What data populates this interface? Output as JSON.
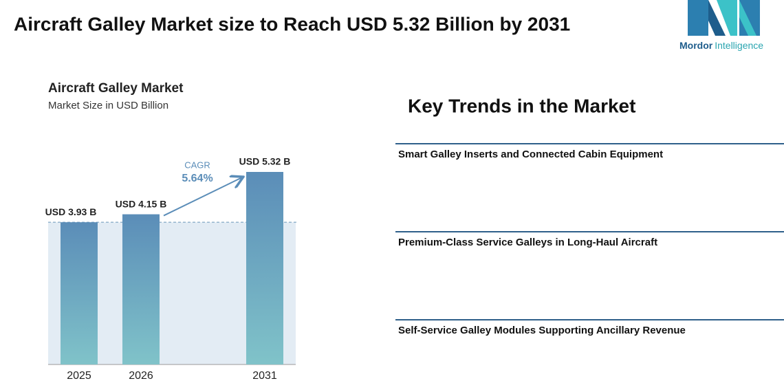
{
  "header": {
    "title": "Aircraft Galley Market size to Reach USD 5.32 Billion by 2031",
    "logo_brand": "Mordor",
    "logo_suffix": "Intelligence"
  },
  "chart_data": {
    "type": "bar",
    "title": "Aircraft Galley Market",
    "subtitle": "Market Size in USD Billion",
    "categories": [
      "2025",
      "2026",
      "2031"
    ],
    "values": [
      3.93,
      4.15,
      5.32
    ],
    "value_labels": [
      "USD 3.93 B",
      "USD 4.15 B",
      "USD 5.32 B"
    ],
    "colors": [
      "#5b8db8",
      "#80c3c9"
    ],
    "annotations": [
      "CAGR",
      "5.64%"
    ]
  },
  "trends": {
    "title": "Key Trends in the Market",
    "items": [
      "Smart Galley Inserts and Connected Cabin Equipment",
      "Premium-Class Service Galleys in Long-Haul Aircraft",
      "Self-Service Galley Modules Supporting Ancillary Revenue"
    ]
  }
}
